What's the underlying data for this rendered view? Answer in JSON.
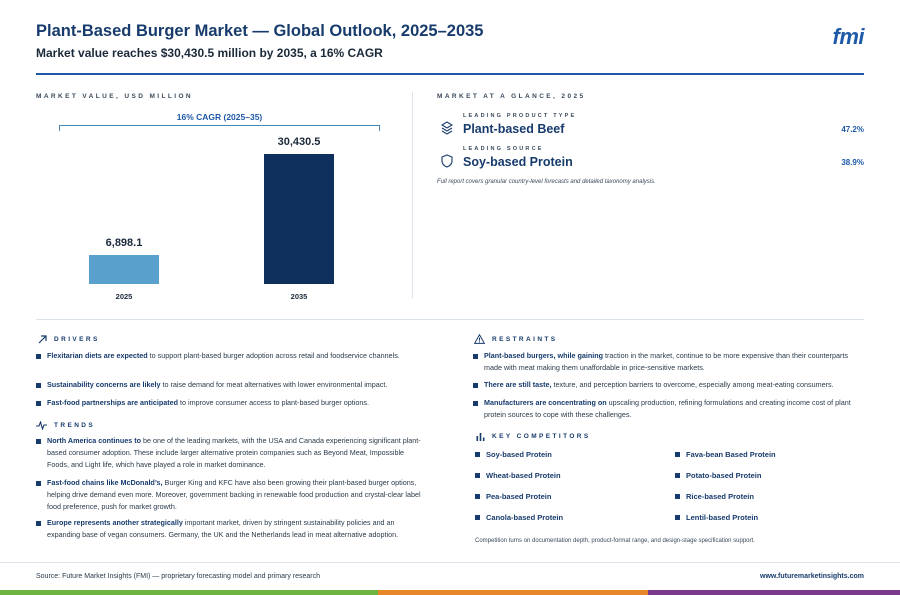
{
  "header": {
    "title": "Plant-Based Burger Market — Global Outlook, 2025–2035",
    "subtitle": "Market value reaches $30,430.5 million by 2035, a 16% CAGR",
    "logo": "fmi"
  },
  "market_value": {
    "label": "MARKET VALUE, USD MILLION",
    "cagr_label": "16% CAGR (2025–35)"
  },
  "chart_data": {
    "type": "bar",
    "categories": [
      "2025",
      "2035"
    ],
    "values": [
      6898.1,
      30430.5
    ],
    "value_labels": [
      "6,898.1",
      "30,430.5"
    ],
    "colors": [
      "#5aa0cc",
      "#0f2f5c"
    ],
    "ylim": [
      0,
      30430.5
    ]
  },
  "glance": {
    "label": "MARKET AT A GLANCE, 2025",
    "items": [
      {
        "kicker": "LEADING PRODUCT TYPE",
        "name": "Plant-based Beef",
        "pct": "47.2%",
        "icon": "layers-icon"
      },
      {
        "kicker": "LEADING SOURCE",
        "name": "Soy-based Protein",
        "pct": "38.9%",
        "icon": "shield-icon"
      }
    ],
    "note": "Full report covers granular country-level forecasts and detailed taxonomy analysis."
  },
  "drivers": {
    "label": "DRIVERS",
    "items": [
      {
        "bold": "Flexitarian diets are expected",
        "rest": " to support plant-based burger adoption across retail and foodservice channels."
      },
      {
        "bold": "Sustainability concerns are likely",
        "rest": " to raise demand for meat alternatives with lower environmental impact."
      },
      {
        "bold": "Fast-food partnerships are anticipated",
        "rest": " to improve consumer access to plant-based burger options."
      }
    ]
  },
  "trends": {
    "label": "TRENDS",
    "items": [
      {
        "bold": "North America continues to",
        "rest": " be one of the leading markets, with the USA and Canada experiencing significant plant-based consumer adoption. These include larger alternative protein companies such as Beyond Meat, Impossible Foods, and Light life, which have played a role in market dominance."
      },
      {
        "bold": "Fast-food chains like McDonald’s,",
        "rest": " Burger King and KFC have also been growing their plant-based burger options, helping drive demand even more. Moreover, government backing in renewable food production and crystal-clear label food preference, push for market growth."
      },
      {
        "bold": "Europe represents another strategically",
        "rest": " important market, driven by stringent sustainability policies and an expanding base of vegan consumers. Germany, the UK and the Netherlands lead in meat alternative adoption."
      }
    ]
  },
  "restraints": {
    "label": "RESTRAINTS",
    "items": [
      {
        "bold": "Plant-based burgers, while gaining",
        "rest": " traction in the market, continue to be more expensive than their counterparts made with meat making them unaffordable in price-sensitive markets."
      },
      {
        "bold": "There are still taste,",
        "rest": " texture, and perception barriers to overcome, especially among meat-eating consumers."
      },
      {
        "bold": "Manufacturers are concentrating on",
        "rest": " upscaling production, refining formulations and creating income cost of plant protein sources to cope with these challenges."
      }
    ]
  },
  "competitors": {
    "label": "KEY COMPETITORS",
    "items": [
      "Soy-based Protein",
      "Fava-bean Based Protein",
      "Wheat-based Protein",
      "Potato-based Protein",
      "Pea-based Protein",
      "Rice-based Protein",
      "Canola-based Protein",
      "Lentil-based Protein"
    ],
    "note": "Competition turns on documentation depth, product-format range, and design-stage specification support."
  },
  "footer": {
    "source": "Source: Future Market Insights (FMI) — proprietary forecasting model and primary research",
    "url": "www.futuremarketinsights.com",
    "stripe_colors": [
      "#6cb33f",
      "#e8872a",
      "#7b3a8c"
    ]
  }
}
